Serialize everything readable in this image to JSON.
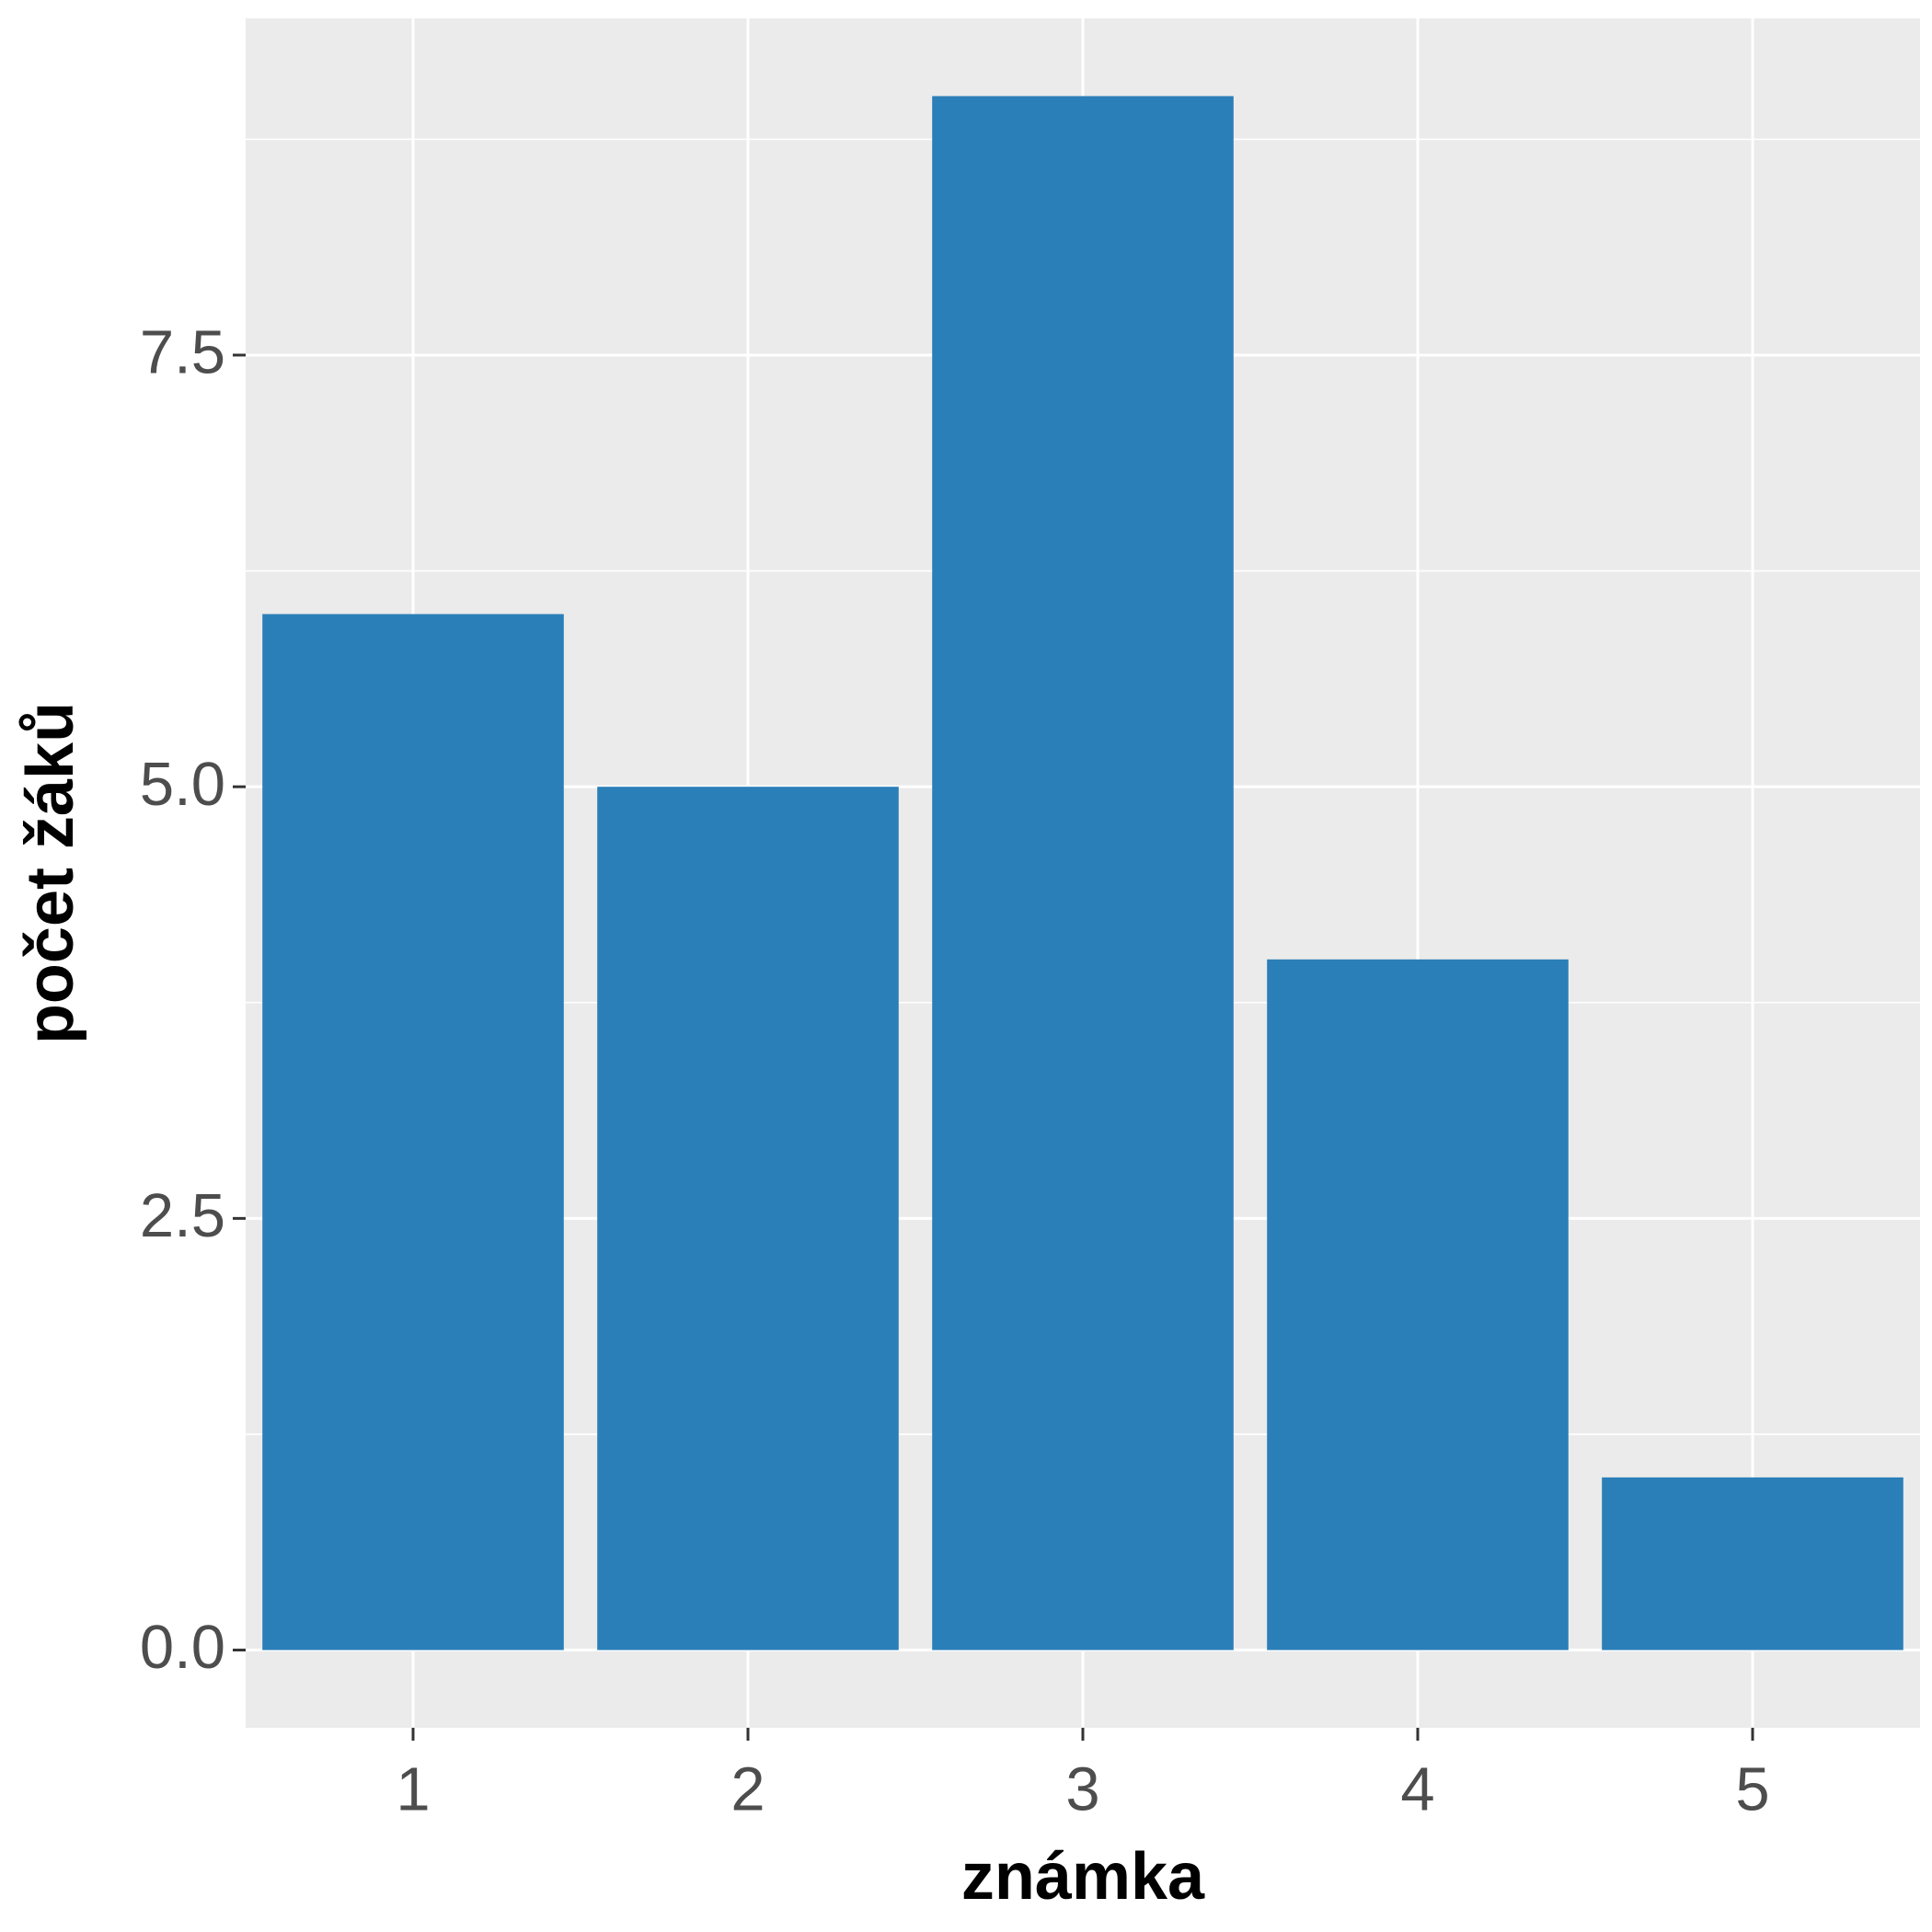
{
  "chart_data": {
    "type": "bar",
    "x_label": "známka",
    "y_label": "počet žáků",
    "categories": [
      "1",
      "2",
      "3",
      "4",
      "5"
    ],
    "values": [
      6,
      5,
      9,
      4,
      1
    ],
    "color": "#2b7fb8",
    "ylim": [
      -0.45,
      9.45
    ],
    "yticks": [
      {
        "value": 0,
        "label": "0.0"
      },
      {
        "value": 2.5,
        "label": "2.5"
      },
      {
        "value": 5,
        "label": "5.0"
      },
      {
        "value": 7.5,
        "label": "7.5"
      }
    ],
    "grid": true
  }
}
